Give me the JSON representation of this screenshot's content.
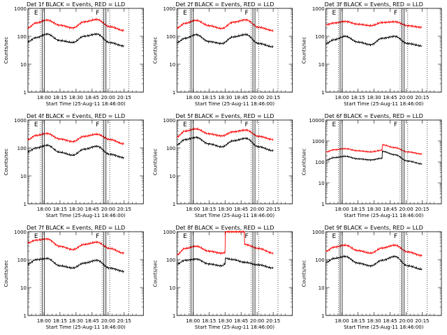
{
  "figure": {
    "xlabel": "Start Time (25-Aug-11 18:46:00)",
    "ylabel": "Counts/sec",
    "series_colors": {
      "events": "#000000",
      "lld": "#ff0000"
    },
    "x_tick_labels": [
      "18:00",
      "18:15",
      "18:30",
      "18:45",
      "20:00",
      "20:15"
    ]
  },
  "chart_data": [
    {
      "type": "line",
      "title": "Det 1f BLACK = Events, RED = LLD",
      "xlabel": "Start Time (25-Aug-11 18:46:00)",
      "ylabel": "Counts/sec",
      "y_scale": "log",
      "ylim": [
        1,
        1000
      ],
      "y_ticks": [
        1,
        10,
        100,
        1000
      ],
      "y_tick_labels": [
        "1",
        "10",
        "100",
        "1000"
      ],
      "x_ticks": [
        "18:00",
        "18:15",
        "18:30",
        "18:45",
        "20:00",
        "20:15"
      ],
      "x": [
        0,
        0.5,
        1.2,
        2,
        2.8,
        3.5,
        4.3,
        5.1,
        6
      ],
      "series": [
        {
          "color": "#000000",
          "values": [
            65,
            90,
            120,
            70,
            60,
            100,
            120,
            60,
            45
          ]
        },
        {
          "color": "#ff0000",
          "values": [
            200,
            300,
            380,
            250,
            200,
            330,
            400,
            220,
            160
          ]
        }
      ],
      "markers": [
        {
          "x": 0.95,
          "type": "double",
          "label": "E"
        },
        {
          "x": 4.8,
          "type": "double",
          "label": "F"
        },
        {
          "x": 5.1,
          "type": "dotted"
        },
        {
          "x": 6.3,
          "type": "dotted"
        }
      ]
    },
    {
      "type": "line",
      "title": "Det 2f BLACK = Events, RED = LLD",
      "xlabel": "Start Time (25-Aug-11 18:46:00)",
      "ylabel": "Counts/sec",
      "y_scale": "log",
      "ylim": [
        1,
        1000
      ],
      "y_ticks": [
        1,
        10,
        100,
        1000
      ],
      "y_tick_labels": [
        "1",
        "10",
        "100",
        "1000"
      ],
      "x_ticks": [
        "18:00",
        "18:15",
        "18:30",
        "18:45",
        "20:00",
        "20:15"
      ],
      "x": [
        0,
        0.5,
        1.2,
        2,
        2.8,
        3.5,
        4.3,
        5.1,
        6
      ],
      "series": [
        {
          "color": "#000000",
          "values": [
            60,
            85,
            115,
            65,
            55,
            95,
            115,
            55,
            42
          ]
        },
        {
          "color": "#ff0000",
          "values": [
            200,
            290,
            370,
            240,
            190,
            320,
            390,
            210,
            160
          ]
        }
      ],
      "markers": [
        {
          "x": 0.95,
          "type": "double",
          "label": "E"
        },
        {
          "x": 4.8,
          "type": "double",
          "label": "F"
        },
        {
          "x": 5.1,
          "type": "dotted"
        },
        {
          "x": 6.3,
          "type": "dotted"
        }
      ]
    },
    {
      "type": "line",
      "title": "Det 3f BLACK = Events, RED = LLD",
      "xlabel": "Start Time (25-Aug-11 18:46:00)",
      "ylabel": "Counts/sec",
      "y_scale": "log",
      "ylim": [
        1,
        1000
      ],
      "y_ticks": [
        1,
        10,
        100,
        1000
      ],
      "y_tick_labels": [
        "1",
        "10",
        "100",
        "1000"
      ],
      "x_ticks": [
        "18:00",
        "18:15",
        "18:30",
        "18:45",
        "20:00",
        "20:15"
      ],
      "x": [
        0,
        0.5,
        1.2,
        2,
        2.8,
        3.5,
        4.3,
        5.1,
        6
      ],
      "series": [
        {
          "color": "#000000",
          "values": [
            55,
            75,
            100,
            62,
            50,
            85,
            100,
            55,
            45
          ]
        },
        {
          "color": "#ff0000",
          "values": [
            260,
            300,
            340,
            270,
            240,
            310,
            330,
            240,
            210
          ]
        }
      ],
      "markers": [
        {
          "x": 0.95,
          "type": "double",
          "label": "E"
        },
        {
          "x": 4.8,
          "type": "double",
          "label": "F"
        },
        {
          "x": 5.1,
          "type": "dotted"
        },
        {
          "x": 6.3,
          "type": "dotted"
        }
      ]
    },
    {
      "type": "line",
      "title": "Det 4f BLACK = Events, RED = LLD",
      "xlabel": "Start Time (25-Aug-11 18:46:00)",
      "ylabel": "Counts/sec",
      "y_scale": "log",
      "ylim": [
        1,
        1000
      ],
      "y_ticks": [
        1,
        10,
        100,
        1000
      ],
      "y_tick_labels": [
        "1",
        "10",
        "100",
        "1000"
      ],
      "x_ticks": [
        "18:00",
        "18:15",
        "18:30",
        "18:45",
        "20:00",
        "20:15"
      ],
      "x": [
        0,
        0.5,
        1.2,
        2,
        2.8,
        3.5,
        4.3,
        5.1,
        6
      ],
      "series": [
        {
          "color": "#000000",
          "values": [
            75,
            100,
            125,
            70,
            55,
            90,
            115,
            60,
            45
          ]
        },
        {
          "color": "#ff0000",
          "values": [
            200,
            280,
            330,
            210,
            170,
            260,
            310,
            200,
            140
          ]
        }
      ],
      "markers": [
        {
          "x": 0.95,
          "type": "double",
          "label": "E"
        },
        {
          "x": 4.8,
          "type": "double",
          "label": "F"
        },
        {
          "x": 5.1,
          "type": "dotted"
        },
        {
          "x": 6.3,
          "type": "dotted"
        }
      ]
    },
    {
      "type": "line",
      "title": "Det 5f BLACK = Events, RED = LLD",
      "xlabel": "Start Time (25-Aug-11 18:46:00)",
      "ylabel": "Counts/sec",
      "y_scale": "log",
      "ylim": [
        1,
        1000
      ],
      "y_ticks": [
        1,
        10,
        100,
        1000
      ],
      "y_tick_labels": [
        "1",
        "10",
        "100",
        "1000"
      ],
      "x_ticks": [
        "18:00",
        "18:15",
        "18:30",
        "18:45",
        "20:00",
        "20:15"
      ],
      "x": [
        0,
        0.5,
        1.2,
        2,
        2.8,
        3.5,
        4.3,
        5.1,
        6
      ],
      "series": [
        {
          "color": "#000000",
          "values": [
            130,
            200,
            240,
            140,
            110,
            180,
            220,
            110,
            80
          ]
        },
        {
          "color": "#ff0000",
          "values": [
            250,
            400,
            480,
            320,
            270,
            380,
            440,
            260,
            200
          ]
        }
      ],
      "markers": [
        {
          "x": 0.95,
          "type": "double",
          "label": "E"
        },
        {
          "x": 4.8,
          "type": "double",
          "label": "F"
        },
        {
          "x": 5.1,
          "type": "dotted"
        },
        {
          "x": 6.3,
          "type": "dotted"
        }
      ]
    },
    {
      "type": "line",
      "title": "Det 6f BLACK = Events, RED = LLD",
      "xlabel": "Start Time (25-Aug-11 18:46:00)",
      "ylabel": "Counts/sec",
      "y_scale": "log",
      "ylim": [
        1,
        10000
      ],
      "y_ticks": [
        1,
        10,
        100,
        1000,
        10000
      ],
      "y_tick_labels": [
        "1",
        "10",
        "100",
        "1000",
        "10000"
      ],
      "x_ticks": [
        "18:00",
        "18:15",
        "18:30",
        "18:45",
        "20:00",
        "20:15"
      ],
      "x": [
        0,
        0.5,
        1.2,
        2,
        2.8,
        3.5,
        3.52,
        4.3,
        5.1,
        6
      ],
      "series": [
        {
          "color": "#000000",
          "values": [
            120,
            160,
            185,
            140,
            125,
            150,
            320,
            220,
            110,
            80
          ]
        },
        {
          "color": "#ff0000",
          "values": [
            300,
            380,
            430,
            340,
            300,
            360,
            650,
            480,
            300,
            240
          ]
        }
      ],
      "markers": [
        {
          "x": 0.95,
          "type": "double",
          "label": "E"
        },
        {
          "x": 4.8,
          "type": "double",
          "label": "F"
        },
        {
          "x": 5.1,
          "type": "dotted"
        },
        {
          "x": 6.3,
          "type": "dotted"
        }
      ]
    },
    {
      "type": "line",
      "title": "Det 7f BLACK = Events, RED = LLD",
      "xlabel": "Start Time (25-Aug-11 18:46:00)",
      "ylabel": "Counts/sec",
      "y_scale": "log",
      "ylim": [
        1,
        1000
      ],
      "y_ticks": [
        1,
        10,
        100,
        1000
      ],
      "y_tick_labels": [
        "1",
        "10",
        "100",
        "1000"
      ],
      "x_ticks": [
        "18:00",
        "18:15",
        "18:30",
        "18:45",
        "20:00",
        "20:15"
      ],
      "x": [
        0,
        0.5,
        1.2,
        2,
        2.8,
        3.5,
        4.3,
        5.1,
        6
      ],
      "series": [
        {
          "color": "#000000",
          "values": [
            70,
            100,
            110,
            60,
            50,
            75,
            95,
            50,
            38
          ]
        },
        {
          "color": "#ff0000",
          "values": [
            400,
            500,
            550,
            300,
            230,
            350,
            420,
            250,
            170
          ]
        }
      ],
      "markers": [
        {
          "x": 0.95,
          "type": "double",
          "label": "E"
        },
        {
          "x": 4.8,
          "type": "double",
          "label": "F"
        },
        {
          "x": 5.1,
          "type": "dotted"
        },
        {
          "x": 6.3,
          "type": "dotted"
        }
      ]
    },
    {
      "type": "line",
      "title": "Det 8f BLACK = Events, RED = LLD",
      "xlabel": "Start Time (25-Aug-11 18:46:00)",
      "ylabel": "Counts/sec",
      "y_scale": "log",
      "ylim": [
        1,
        1000
      ],
      "y_ticks": [
        1,
        10,
        100,
        1000
      ],
      "y_tick_labels": [
        "1",
        "10",
        "100",
        "1000"
      ],
      "x_ticks": [
        "18:00",
        "18:15",
        "18:30",
        "18:45",
        "20:00",
        "20:15"
      ],
      "x": [
        0,
        0.5,
        1.2,
        2,
        2.8,
        3.0,
        3.02,
        3.5,
        4.2,
        4.22,
        5.1,
        6
      ],
      "series": [
        {
          "color": "#000000",
          "values": [
            70,
            95,
            105,
            70,
            60,
            70,
            110,
            100,
            80,
            80,
            65,
            50
          ]
        },
        {
          "color": "#ff0000",
          "values": [
            150,
            250,
            300,
            200,
            170,
            180,
            1000,
            1000,
            1000,
            350,
            250,
            170
          ]
        }
      ],
      "markers": [
        {
          "x": 0.95,
          "type": "double",
          "label": "E"
        },
        {
          "x": 4.8,
          "type": "double",
          "label": "F"
        },
        {
          "x": 5.1,
          "type": "dotted"
        },
        {
          "x": 6.3,
          "type": "dotted"
        }
      ]
    },
    {
      "type": "line",
      "title": "Det 9f BLACK = Events, RED = LLD",
      "xlabel": "Start Time (25-Aug-11 18:46:00)",
      "ylabel": "Counts/sec",
      "y_scale": "log",
      "ylim": [
        1,
        1000
      ],
      "y_ticks": [
        1,
        10,
        100,
        1000
      ],
      "y_tick_labels": [
        "1",
        "10",
        "100",
        "1000"
      ],
      "x_ticks": [
        "18:00",
        "18:15",
        "18:30",
        "18:45",
        "20:00",
        "20:15"
      ],
      "x": [
        0,
        0.5,
        1.2,
        2,
        2.8,
        3.5,
        4.3,
        5.1,
        6
      ],
      "series": [
        {
          "color": "#000000",
          "values": [
            80,
            110,
            130,
            75,
            60,
            95,
            130,
            60,
            45
          ]
        },
        {
          "color": "#ff0000",
          "values": [
            200,
            280,
            330,
            210,
            170,
            260,
            330,
            190,
            140
          ]
        }
      ],
      "markers": [
        {
          "x": 0.95,
          "type": "double",
          "label": "E"
        },
        {
          "x": 4.8,
          "type": "double",
          "label": "F"
        },
        {
          "x": 5.1,
          "type": "dotted"
        },
        {
          "x": 6.3,
          "type": "dotted"
        }
      ]
    }
  ]
}
